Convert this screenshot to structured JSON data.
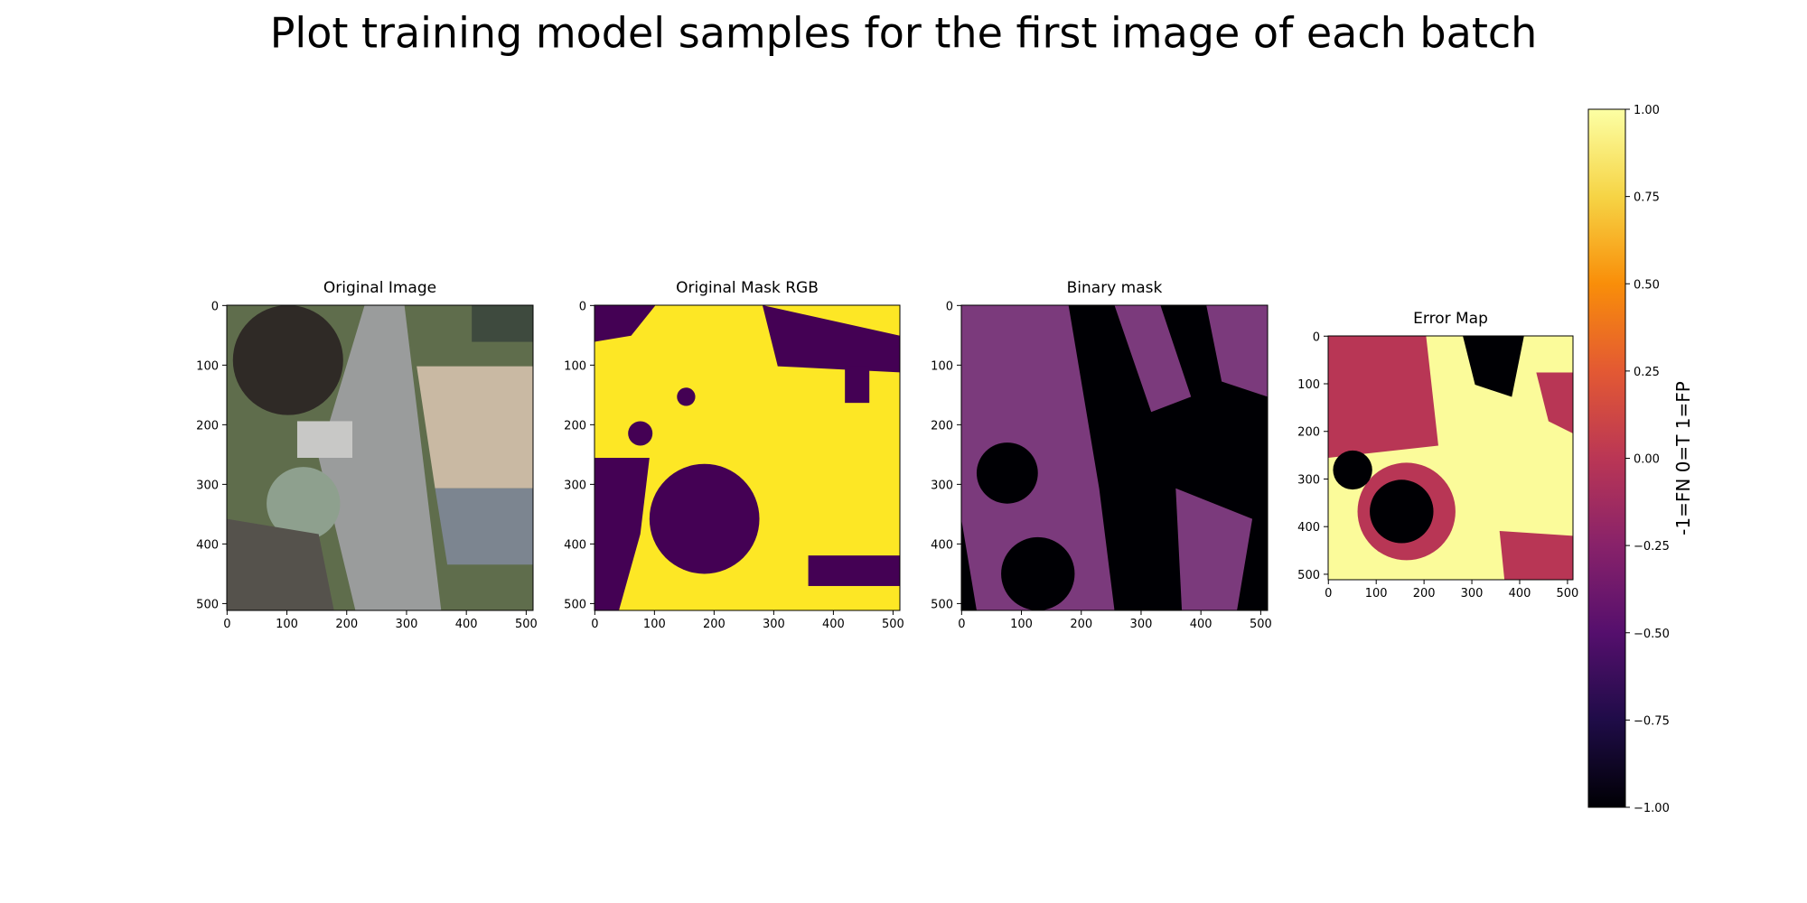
{
  "title": "Plot training model samples for the first image of each batch",
  "chart_data": [
    {
      "type": "image",
      "title": "Original Image",
      "xlim": [
        -0.5,
        511.5
      ],
      "ylim": [
        511.5,
        -0.5
      ],
      "xticks": [
        0,
        100,
        200,
        300,
        400,
        500
      ],
      "yticks": [
        0,
        100,
        200,
        300,
        400,
        500
      ]
    },
    {
      "type": "image",
      "title": "Original Mask RGB",
      "xlim": [
        -0.5,
        511.5
      ],
      "ylim": [
        511.5,
        -0.5
      ],
      "xticks": [
        0,
        100,
        200,
        300,
        400,
        500
      ],
      "yticks": [
        0,
        100,
        200,
        300,
        400,
        500
      ]
    },
    {
      "type": "image",
      "title": "Binary mask",
      "xlim": [
        -0.5,
        511.5
      ],
      "ylim": [
        511.5,
        -0.5
      ],
      "xticks": [
        0,
        100,
        200,
        300,
        400,
        500
      ],
      "yticks": [
        0,
        100,
        200,
        300,
        400,
        500
      ]
    },
    {
      "type": "image",
      "title": "Error Map",
      "xlim": [
        -0.5,
        511.5
      ],
      "ylim": [
        511.5,
        -0.5
      ],
      "xticks": [
        0,
        100,
        200,
        300,
        400,
        500
      ],
      "yticks": [
        0,
        100,
        200,
        300,
        400,
        500
      ]
    },
    {
      "type": "colorbar",
      "label": "-1=FN 0=T 1=FP",
      "ylim": [
        -1,
        1
      ],
      "yticks": [
        {
          "value": -1,
          "label": "−1.00"
        },
        {
          "value": -0.75,
          "label": "−0.75"
        },
        {
          "value": -0.5,
          "label": "−0.50"
        },
        {
          "value": -0.25,
          "label": "−0.25"
        },
        {
          "value": 0,
          "label": "0.00"
        },
        {
          "value": 0.25,
          "label": "0.25"
        },
        {
          "value": 0.5,
          "label": "0.50"
        },
        {
          "value": 0.75,
          "label": "0.75"
        },
        {
          "value": 1,
          "label": "1.00"
        }
      ]
    }
  ]
}
